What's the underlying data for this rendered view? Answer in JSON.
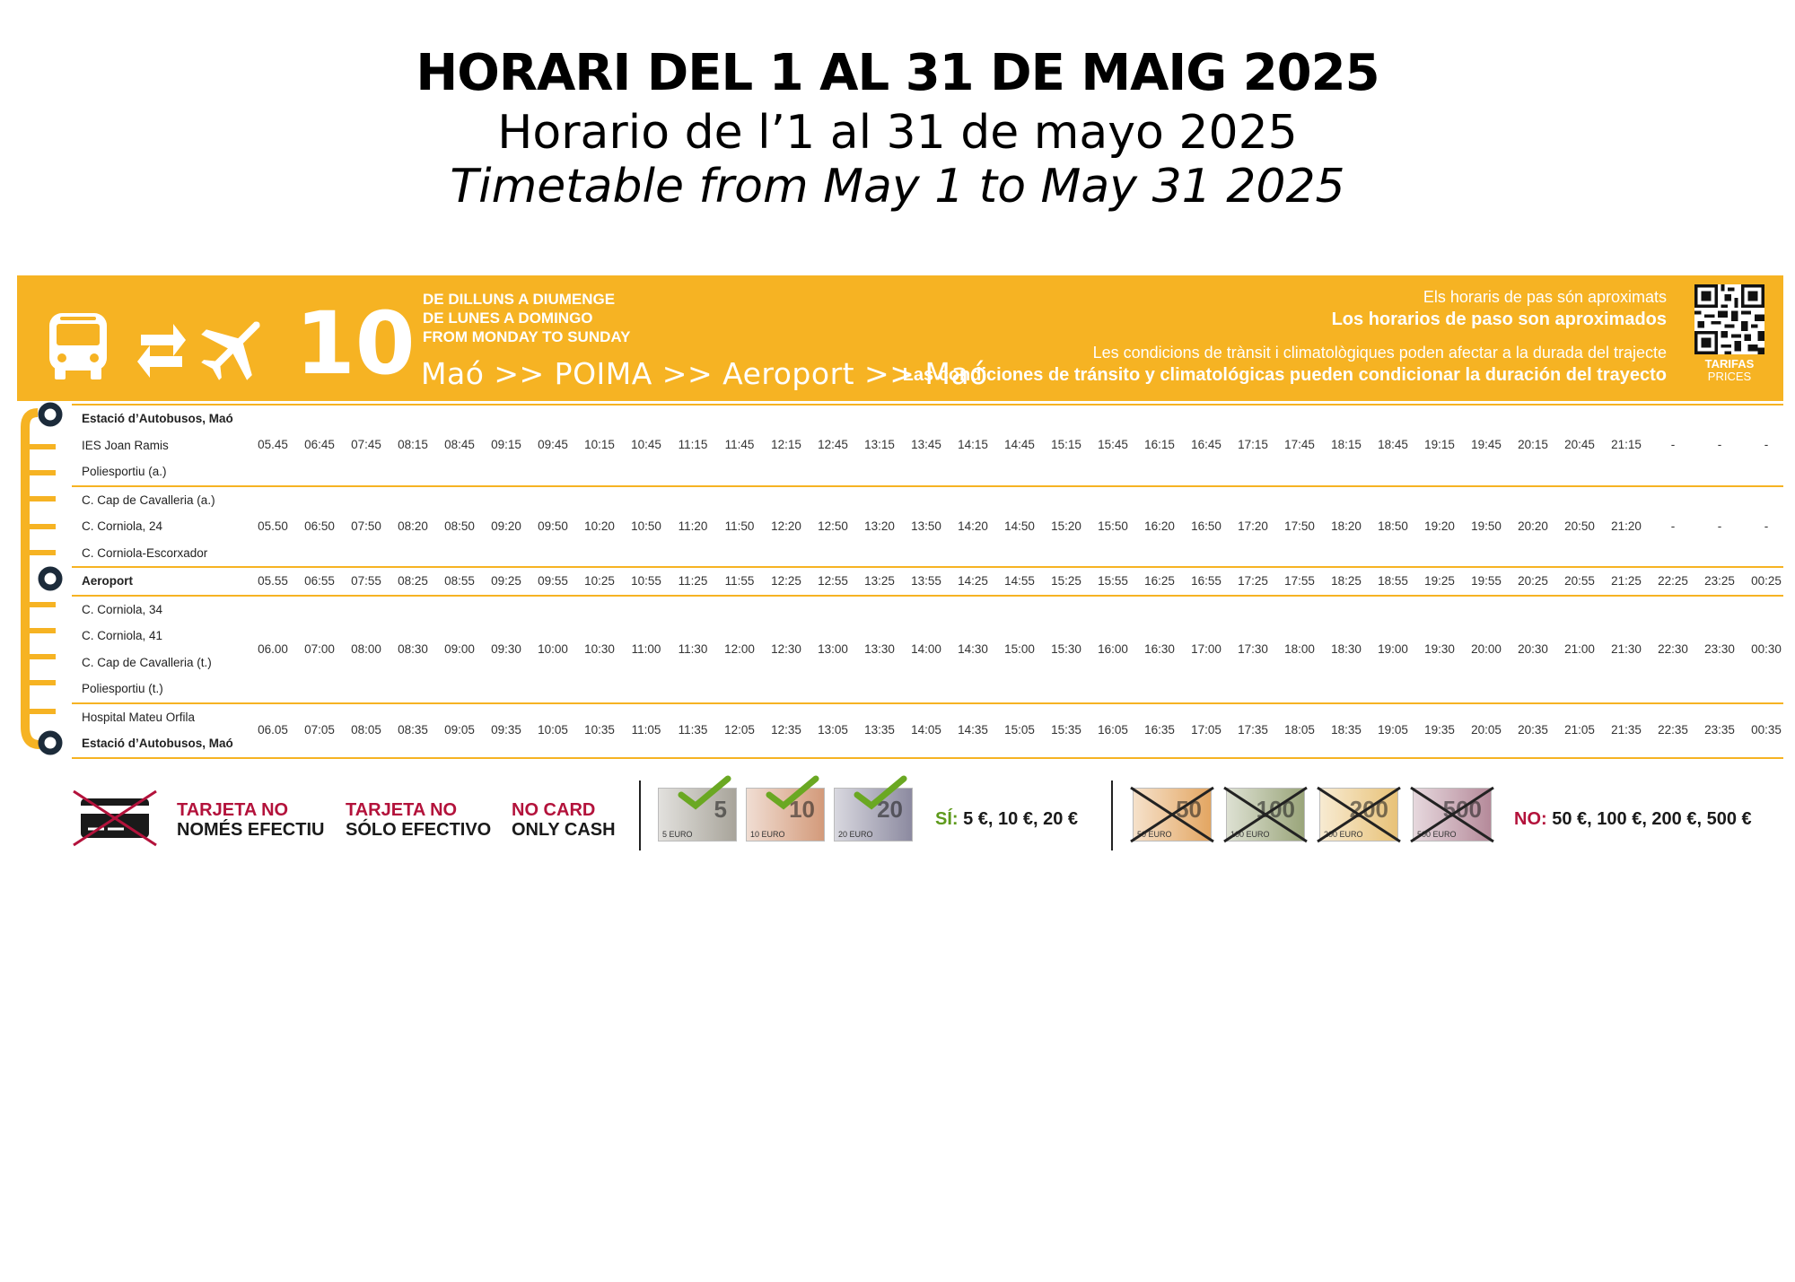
{
  "titles": {
    "catalan": "HORARI DEL 1 AL 31 DE MAIG 2025",
    "spanish": "Horario de l’1 al 31 de mayo 2025",
    "english": "Timetable from May 1 to May 31 2025"
  },
  "header": {
    "route_number": "10",
    "days": [
      "DE DILLUNS A DIUMENGE",
      "DE LUNES A DOMINGO",
      "FROM MONDAY TO SUNDAY"
    ],
    "route": "Maó >> POIMA >> Aeroport >> Maó",
    "notes": [
      {
        "text": "Els horaris de pas són aproximats",
        "bold": false
      },
      {
        "text": "Los horarios de paso son aproximados",
        "bold": true
      },
      {
        "text": "Les condicions de trànsit i climatològiques poden afectar a la durada del trajecte",
        "bold": false
      },
      {
        "text": "Las condiciones de tránsito y climatológicas pueden condicionar la duración del trayecto",
        "bold": true
      }
    ],
    "qr_label": "TARIFAS",
    "qr_sublabel": "PRICES"
  },
  "groups": [
    {
      "stops": [
        {
          "name": "Estació d’Autobusos, Maó",
          "bold": true
        },
        {
          "name": "IES Joan Ramis",
          "bold": false
        },
        {
          "name": "Poliesportiu (a.)",
          "bold": false
        }
      ],
      "times": [
        "05.45",
        "06:45",
        "07:45",
        "08:15",
        "08:45",
        "09:15",
        "09:45",
        "10:15",
        "10:45",
        "11:15",
        "11:45",
        "12:15",
        "12:45",
        "13:15",
        "13:45",
        "14:15",
        "14:45",
        "15:15",
        "15:45",
        "16:15",
        "16:45",
        "17:15",
        "17:45",
        "18:15",
        "18:45",
        "19:15",
        "19:45",
        "20:15",
        "20:45",
        "21:15",
        "-",
        "-",
        "-"
      ]
    },
    {
      "stops": [
        {
          "name": "C. Cap de Cavalleria (a.)",
          "bold": false
        },
        {
          "name": "C. Corniola, 24",
          "bold": false
        },
        {
          "name": "C. Corniola-Escorxador",
          "bold": false
        }
      ],
      "times": [
        "05.50",
        "06:50",
        "07:50",
        "08:20",
        "08:50",
        "09:20",
        "09:50",
        "10:20",
        "10:50",
        "11:20",
        "11:50",
        "12:20",
        "12:50",
        "13:20",
        "13:50",
        "14:20",
        "14:50",
        "15:20",
        "15:50",
        "16:20",
        "16:50",
        "17:20",
        "17:50",
        "18:20",
        "18:50",
        "19:20",
        "19:50",
        "20:20",
        "20:50",
        "21:20",
        "-",
        "-",
        "-"
      ]
    },
    {
      "stops": [
        {
          "name": "Aeroport",
          "bold": true
        }
      ],
      "times": [
        "05.55",
        "06:55",
        "07:55",
        "08:25",
        "08:55",
        "09:25",
        "09:55",
        "10:25",
        "10:55",
        "11:25",
        "11:55",
        "12:25",
        "12:55",
        "13:25",
        "13:55",
        "14:25",
        "14:55",
        "15:25",
        "15:55",
        "16:25",
        "16:55",
        "17:25",
        "17:55",
        "18:25",
        "18:55",
        "19:25",
        "19:55",
        "20:25",
        "20:55",
        "21:25",
        "22:25",
        "23:25",
        "00:25"
      ]
    },
    {
      "stops": [
        {
          "name": "C. Corniola, 34",
          "bold": false
        },
        {
          "name": "C. Corniola, 41",
          "bold": false
        },
        {
          "name": "C. Cap de Cavalleria (t.)",
          "bold": false
        },
        {
          "name": "Poliesportiu (t.)",
          "bold": false
        }
      ],
      "times": [
        "06.00",
        "07:00",
        "08:00",
        "08:30",
        "09:00",
        "09:30",
        "10:00",
        "10:30",
        "11:00",
        "11:30",
        "12:00",
        "12:30",
        "13:00",
        "13:30",
        "14:00",
        "14:30",
        "15:00",
        "15:30",
        "16:00",
        "16:30",
        "17:00",
        "17:30",
        "18:00",
        "18:30",
        "19:00",
        "19:30",
        "20:00",
        "20:30",
        "21:00",
        "21:30",
        "22:30",
        "23:30",
        "00:30"
      ]
    },
    {
      "stops": [
        {
          "name": "Hospital Mateu Orfila",
          "bold": false
        },
        {
          "name": "Estació d’Autobusos, Maó",
          "bold": true
        }
      ],
      "times": [
        "06.05",
        "07:05",
        "08:05",
        "08:35",
        "09:05",
        "09:35",
        "10:05",
        "10:35",
        "11:05",
        "11:35",
        "12:05",
        "12:35",
        "13:05",
        "13:35",
        "14:05",
        "14:35",
        "15:05",
        "15:35",
        "16:05",
        "16:35",
        "17:05",
        "17:35",
        "18:05",
        "18:35",
        "19:05",
        "19:35",
        "20:05",
        "20:35",
        "21:05",
        "21:35",
        "22:35",
        "23:35",
        "00:35"
      ]
    }
  ],
  "payment": {
    "cards": [
      {
        "line1": "TARJETA NO",
        "line2": "NOMÉS EFECTIU"
      },
      {
        "line1": "TARJETA NO",
        "line2": "SÓLO EFECTIVO"
      },
      {
        "line1": "NO CARD",
        "line2": "ONLY CASH"
      }
    ],
    "accepted_prefix": "SÍ:",
    "accepted_text": "5 €, 10 €, 20 €",
    "rejected_prefix": "NO:",
    "rejected_text": "50 €, 100 €, 200 €, 500 €",
    "accepted_notes": [
      {
        "label": "5",
        "small": "5 EURO",
        "color": "#a8a49a"
      },
      {
        "label": "10",
        "small": "10 EURO",
        "color": "#d39a7a"
      },
      {
        "label": "20",
        "small": "20 EURO",
        "color": "#8c8aa0"
      }
    ],
    "rejected_notes": [
      {
        "label": "50",
        "small": "50 EURO",
        "color": "#e3a662"
      },
      {
        "label": "100",
        "small": "100 EURO",
        "color": "#9aa57a"
      },
      {
        "label": "200",
        "small": "200 EURO",
        "color": "#e8c278"
      },
      {
        "label": "500",
        "small": "500 EURO",
        "color": "#b58a9a"
      }
    ]
  },
  "colors": {
    "accent": "#f6b323",
    "text_red": "#b3123b",
    "check_green": "#6aa822",
    "line_dark": "#1c2b3a"
  }
}
